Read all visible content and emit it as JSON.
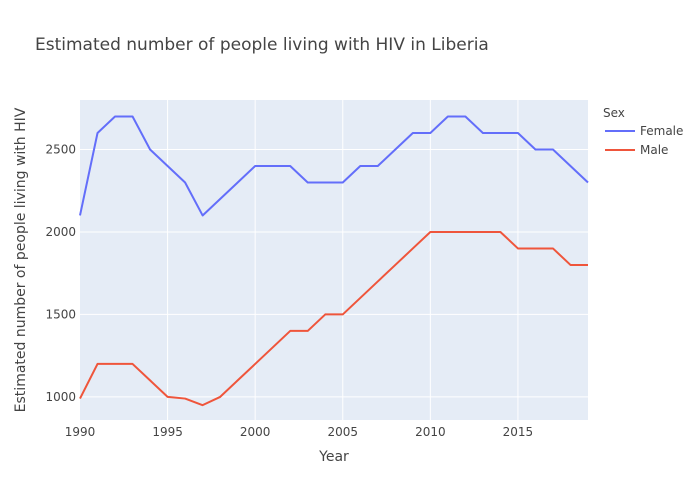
{
  "chart_data": {
    "type": "line",
    "title": "Estimated number of people living with HIV in Liberia",
    "xlabel": "Year",
    "ylabel": "Estimated number of people living with HIV",
    "legend_title": "Sex",
    "legend_position": "top-right",
    "grid": true,
    "xlim": [
      1990,
      2019
    ],
    "ylim": [
      860,
      2800
    ],
    "xticks": [
      1990,
      1995,
      2000,
      2005,
      2010,
      2015
    ],
    "yticks": [
      1000,
      1500,
      2000,
      2500
    ],
    "x": [
      1990,
      1991,
      1992,
      1993,
      1994,
      1995,
      1996,
      1997,
      1998,
      1999,
      2000,
      2001,
      2002,
      2003,
      2004,
      2005,
      2006,
      2007,
      2008,
      2009,
      2010,
      2011,
      2012,
      2013,
      2014,
      2015,
      2016,
      2017,
      2018,
      2019
    ],
    "series": [
      {
        "name": "Female",
        "color": "#636efa",
        "values": [
          2100,
          2600,
          2700,
          2700,
          2500,
          2400,
          2300,
          2100,
          2200,
          2300,
          2400,
          2400,
          2400,
          2300,
          2300,
          2300,
          2400,
          2400,
          2500,
          2600,
          2600,
          2700,
          2700,
          2600,
          2600,
          2600,
          2500,
          2500,
          2400,
          2300
        ]
      },
      {
        "name": "Male",
        "color": "#ef553b",
        "values": [
          990,
          1200,
          1200,
          1200,
          1100,
          1000,
          990,
          950,
          1000,
          1100,
          1200,
          1300,
          1400,
          1400,
          1500,
          1500,
          1600,
          1700,
          1800,
          1900,
          2000,
          2000,
          2000,
          2000,
          2000,
          1900,
          1900,
          1900,
          1800,
          1800
        ]
      }
    ]
  }
}
